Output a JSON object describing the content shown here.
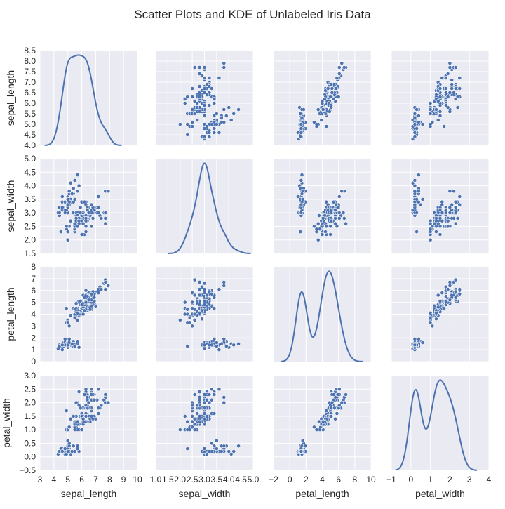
{
  "chart_data": {
    "type": "scatter",
    "title": "Scatter Plots and KDE of Unlabeled Iris Data",
    "grid": true,
    "variables": [
      {
        "name": "sepal_length",
        "label": "sepal_length",
        "lim": [
          3,
          10
        ],
        "ticks": [
          "3",
          "4",
          "5",
          "6",
          "7",
          "8",
          "9",
          "10"
        ],
        "ylim": [
          4.0,
          8.5
        ],
        "yticks": [
          "4.0",
          "4.5",
          "5.0",
          "5.5",
          "6.0",
          "6.5",
          "7.0",
          "7.5",
          "8.0",
          "8.5"
        ]
      },
      {
        "name": "sepal_width",
        "label": "sepal_width",
        "lim": [
          1.0,
          5.0
        ],
        "ticks": [
          "1.0",
          "1.5",
          "2.0",
          "2.5",
          "3.0",
          "3.5",
          "4.0",
          "4.5",
          "5.0"
        ],
        "ylim": [
          1.5,
          5.0
        ],
        "yticks": [
          "1.5",
          "2.0",
          "2.5",
          "3.0",
          "3.5",
          "4.0",
          "4.5",
          "5.0"
        ]
      },
      {
        "name": "petal_length",
        "label": "petal_length",
        "lim": [
          -2,
          10
        ],
        "ticks": [
          "−2",
          "0",
          "2",
          "4",
          "6",
          "8",
          "10"
        ],
        "ylim": [
          0,
          8
        ],
        "yticks": [
          "0",
          "1",
          "2",
          "3",
          "4",
          "5",
          "6",
          "7",
          "8"
        ]
      },
      {
        "name": "petal_width",
        "label": "petal_width",
        "lim": [
          -1,
          4
        ],
        "ticks": [
          "−1",
          "0",
          "1",
          "2",
          "3",
          "4"
        ],
        "ylim": [
          -0.5,
          3.0
        ],
        "yticks": [
          "−0.5",
          "0.0",
          "0.5",
          "1.0",
          "1.5",
          "2.0",
          "2.5",
          "3.0"
        ]
      }
    ],
    "points": [
      [
        5.1,
        3.5,
        1.4,
        0.2
      ],
      [
        4.9,
        3.0,
        1.4,
        0.2
      ],
      [
        4.7,
        3.2,
        1.3,
        0.2
      ],
      [
        4.6,
        3.1,
        1.5,
        0.2
      ],
      [
        5.0,
        3.6,
        1.4,
        0.2
      ],
      [
        5.4,
        3.9,
        1.7,
        0.4
      ],
      [
        4.6,
        3.4,
        1.4,
        0.3
      ],
      [
        5.0,
        3.4,
        1.5,
        0.2
      ],
      [
        4.4,
        2.9,
        1.4,
        0.2
      ],
      [
        4.9,
        3.1,
        1.5,
        0.1
      ],
      [
        5.4,
        3.7,
        1.5,
        0.2
      ],
      [
        4.8,
        3.4,
        1.6,
        0.2
      ],
      [
        4.8,
        3.0,
        1.4,
        0.1
      ],
      [
        4.3,
        3.0,
        1.1,
        0.1
      ],
      [
        5.8,
        4.0,
        1.2,
        0.2
      ],
      [
        5.7,
        4.4,
        1.5,
        0.4
      ],
      [
        5.4,
        3.9,
        1.3,
        0.4
      ],
      [
        5.1,
        3.5,
        1.4,
        0.3
      ],
      [
        5.7,
        3.8,
        1.7,
        0.3
      ],
      [
        5.1,
        3.8,
        1.5,
        0.3
      ],
      [
        5.4,
        3.4,
        1.7,
        0.2
      ],
      [
        5.1,
        3.7,
        1.5,
        0.4
      ],
      [
        4.6,
        3.6,
        1.0,
        0.2
      ],
      [
        5.1,
        3.3,
        1.7,
        0.5
      ],
      [
        4.8,
        3.4,
        1.9,
        0.2
      ],
      [
        5.0,
        3.0,
        1.6,
        0.2
      ],
      [
        5.0,
        3.4,
        1.6,
        0.4
      ],
      [
        5.2,
        3.5,
        1.5,
        0.2
      ],
      [
        5.2,
        3.4,
        1.4,
        0.2
      ],
      [
        4.7,
        3.2,
        1.6,
        0.2
      ],
      [
        4.8,
        3.1,
        1.6,
        0.2
      ],
      [
        5.4,
        3.4,
        1.5,
        0.4
      ],
      [
        5.2,
        4.1,
        1.5,
        0.1
      ],
      [
        5.5,
        4.2,
        1.4,
        0.2
      ],
      [
        4.9,
        3.1,
        1.5,
        0.1
      ],
      [
        5.0,
        3.2,
        1.2,
        0.2
      ],
      [
        5.5,
        3.5,
        1.3,
        0.2
      ],
      [
        4.9,
        3.1,
        1.5,
        0.1
      ],
      [
        4.4,
        3.0,
        1.3,
        0.2
      ],
      [
        5.1,
        3.4,
        1.5,
        0.2
      ],
      [
        5.0,
        3.5,
        1.3,
        0.3
      ],
      [
        4.5,
        2.3,
        1.3,
        0.3
      ],
      [
        4.4,
        3.2,
        1.3,
        0.2
      ],
      [
        5.0,
        3.5,
        1.6,
        0.6
      ],
      [
        5.1,
        3.8,
        1.9,
        0.4
      ],
      [
        4.8,
        3.0,
        1.4,
        0.3
      ],
      [
        5.1,
        3.8,
        1.6,
        0.2
      ],
      [
        4.6,
        3.2,
        1.4,
        0.2
      ],
      [
        5.3,
        3.7,
        1.5,
        0.2
      ],
      [
        5.0,
        3.3,
        1.4,
        0.2
      ],
      [
        7.0,
        3.2,
        4.7,
        1.4
      ],
      [
        6.4,
        3.2,
        4.5,
        1.5
      ],
      [
        6.9,
        3.1,
        4.9,
        1.5
      ],
      [
        5.5,
        2.3,
        4.0,
        1.3
      ],
      [
        6.5,
        2.8,
        4.6,
        1.5
      ],
      [
        5.7,
        2.8,
        4.5,
        1.3
      ],
      [
        6.3,
        3.3,
        4.7,
        1.6
      ],
      [
        4.9,
        2.4,
        3.3,
        1.0
      ],
      [
        6.6,
        2.9,
        4.6,
        1.3
      ],
      [
        5.2,
        2.7,
        3.9,
        1.4
      ],
      [
        5.0,
        2.0,
        3.5,
        1.0
      ],
      [
        5.9,
        3.0,
        4.2,
        1.5
      ],
      [
        6.0,
        2.2,
        4.0,
        1.0
      ],
      [
        6.1,
        2.9,
        4.7,
        1.4
      ],
      [
        5.6,
        2.9,
        3.6,
        1.3
      ],
      [
        6.7,
        3.1,
        4.4,
        1.4
      ],
      [
        5.6,
        3.0,
        4.5,
        1.5
      ],
      [
        5.8,
        2.7,
        4.1,
        1.0
      ],
      [
        6.2,
        2.2,
        4.5,
        1.5
      ],
      [
        5.6,
        2.5,
        3.9,
        1.1
      ],
      [
        5.9,
        3.2,
        4.8,
        1.8
      ],
      [
        6.1,
        2.8,
        4.0,
        1.3
      ],
      [
        6.3,
        2.5,
        4.9,
        1.5
      ],
      [
        6.1,
        2.8,
        4.7,
        1.2
      ],
      [
        6.4,
        2.9,
        4.3,
        1.3
      ],
      [
        6.6,
        3.0,
        4.4,
        1.4
      ],
      [
        6.8,
        2.8,
        4.8,
        1.4
      ],
      [
        6.7,
        3.0,
        5.0,
        1.7
      ],
      [
        6.0,
        2.9,
        4.5,
        1.5
      ],
      [
        5.7,
        2.6,
        3.5,
        1.0
      ],
      [
        5.5,
        2.4,
        3.8,
        1.1
      ],
      [
        5.5,
        2.4,
        3.7,
        1.0
      ],
      [
        5.8,
        2.7,
        3.9,
        1.2
      ],
      [
        6.0,
        2.7,
        5.1,
        1.6
      ],
      [
        5.4,
        3.0,
        4.5,
        1.5
      ],
      [
        6.0,
        3.4,
        4.5,
        1.6
      ],
      [
        6.7,
        3.1,
        4.7,
        1.5
      ],
      [
        6.3,
        2.3,
        4.4,
        1.3
      ],
      [
        5.6,
        3.0,
        4.1,
        1.3
      ],
      [
        5.5,
        2.5,
        4.0,
        1.3
      ],
      [
        5.5,
        2.6,
        4.4,
        1.2
      ],
      [
        6.1,
        3.0,
        4.6,
        1.4
      ],
      [
        5.8,
        2.6,
        4.0,
        1.2
      ],
      [
        5.0,
        2.3,
        3.3,
        1.0
      ],
      [
        5.6,
        2.7,
        4.2,
        1.3
      ],
      [
        5.7,
        3.0,
        4.2,
        1.2
      ],
      [
        5.7,
        2.9,
        4.2,
        1.3
      ],
      [
        6.2,
        2.9,
        4.3,
        1.3
      ],
      [
        5.1,
        2.5,
        3.0,
        1.1
      ],
      [
        5.7,
        2.8,
        4.1,
        1.3
      ],
      [
        6.3,
        3.3,
        6.0,
        2.5
      ],
      [
        5.8,
        2.7,
        5.1,
        1.9
      ],
      [
        7.1,
        3.0,
        5.9,
        2.1
      ],
      [
        6.3,
        2.9,
        5.6,
        1.8
      ],
      [
        6.5,
        3.0,
        5.8,
        2.2
      ],
      [
        7.6,
        3.0,
        6.6,
        2.1
      ],
      [
        4.9,
        2.5,
        4.5,
        1.7
      ],
      [
        7.3,
        2.9,
        6.3,
        1.8
      ],
      [
        6.7,
        2.5,
        5.8,
        1.8
      ],
      [
        7.2,
        3.6,
        6.1,
        2.5
      ],
      [
        6.5,
        3.2,
        5.1,
        2.0
      ],
      [
        6.4,
        2.7,
        5.3,
        1.9
      ],
      [
        6.8,
        3.0,
        5.5,
        2.1
      ],
      [
        5.7,
        2.5,
        5.0,
        2.0
      ],
      [
        5.8,
        2.8,
        5.1,
        2.4
      ],
      [
        6.4,
        3.2,
        5.3,
        2.3
      ],
      [
        6.5,
        3.0,
        5.5,
        1.8
      ],
      [
        7.7,
        3.8,
        6.7,
        2.2
      ],
      [
        7.7,
        2.6,
        6.9,
        2.3
      ],
      [
        6.0,
        2.2,
        5.0,
        1.5
      ],
      [
        6.9,
        3.2,
        5.7,
        2.3
      ],
      [
        5.6,
        2.8,
        4.9,
        2.0
      ],
      [
        7.7,
        2.8,
        6.7,
        2.0
      ],
      [
        6.3,
        2.7,
        4.9,
        1.8
      ],
      [
        6.7,
        3.3,
        5.7,
        2.1
      ],
      [
        7.2,
        3.2,
        6.0,
        1.8
      ],
      [
        6.2,
        2.8,
        4.8,
        1.8
      ],
      [
        6.1,
        3.0,
        4.9,
        1.8
      ],
      [
        6.4,
        2.8,
        5.6,
        2.1
      ],
      [
        7.2,
        3.0,
        5.8,
        1.6
      ],
      [
        7.4,
        2.8,
        6.1,
        1.9
      ],
      [
        7.9,
        3.8,
        6.4,
        2.0
      ],
      [
        6.4,
        2.8,
        5.6,
        2.2
      ],
      [
        6.3,
        2.8,
        5.1,
        1.5
      ],
      [
        6.1,
        2.6,
        5.6,
        1.4
      ],
      [
        7.7,
        3.0,
        6.1,
        2.3
      ],
      [
        6.3,
        3.4,
        5.6,
        2.4
      ],
      [
        6.4,
        3.1,
        5.5,
        1.8
      ],
      [
        6.0,
        3.0,
        4.8,
        1.8
      ],
      [
        6.9,
        3.1,
        5.4,
        2.1
      ],
      [
        6.7,
        3.1,
        5.6,
        2.4
      ],
      [
        6.9,
        3.1,
        5.1,
        2.3
      ],
      [
        5.8,
        2.7,
        5.1,
        1.9
      ],
      [
        6.8,
        3.2,
        5.9,
        2.3
      ],
      [
        6.7,
        3.3,
        5.7,
        2.5
      ],
      [
        6.7,
        3.0,
        5.2,
        2.3
      ],
      [
        6.3,
        2.5,
        5.0,
        1.9
      ],
      [
        6.5,
        3.0,
        5.2,
        2.0
      ],
      [
        6.2,
        3.4,
        5.4,
        2.3
      ],
      [
        5.9,
        3.0,
        5.1,
        1.8
      ]
    ],
    "colors": {
      "background": "#eaeaf2",
      "grid": "#ffffff",
      "points": "#4c72b0",
      "point_edge": "#ffffff",
      "line": "#4c72b0"
    }
  }
}
